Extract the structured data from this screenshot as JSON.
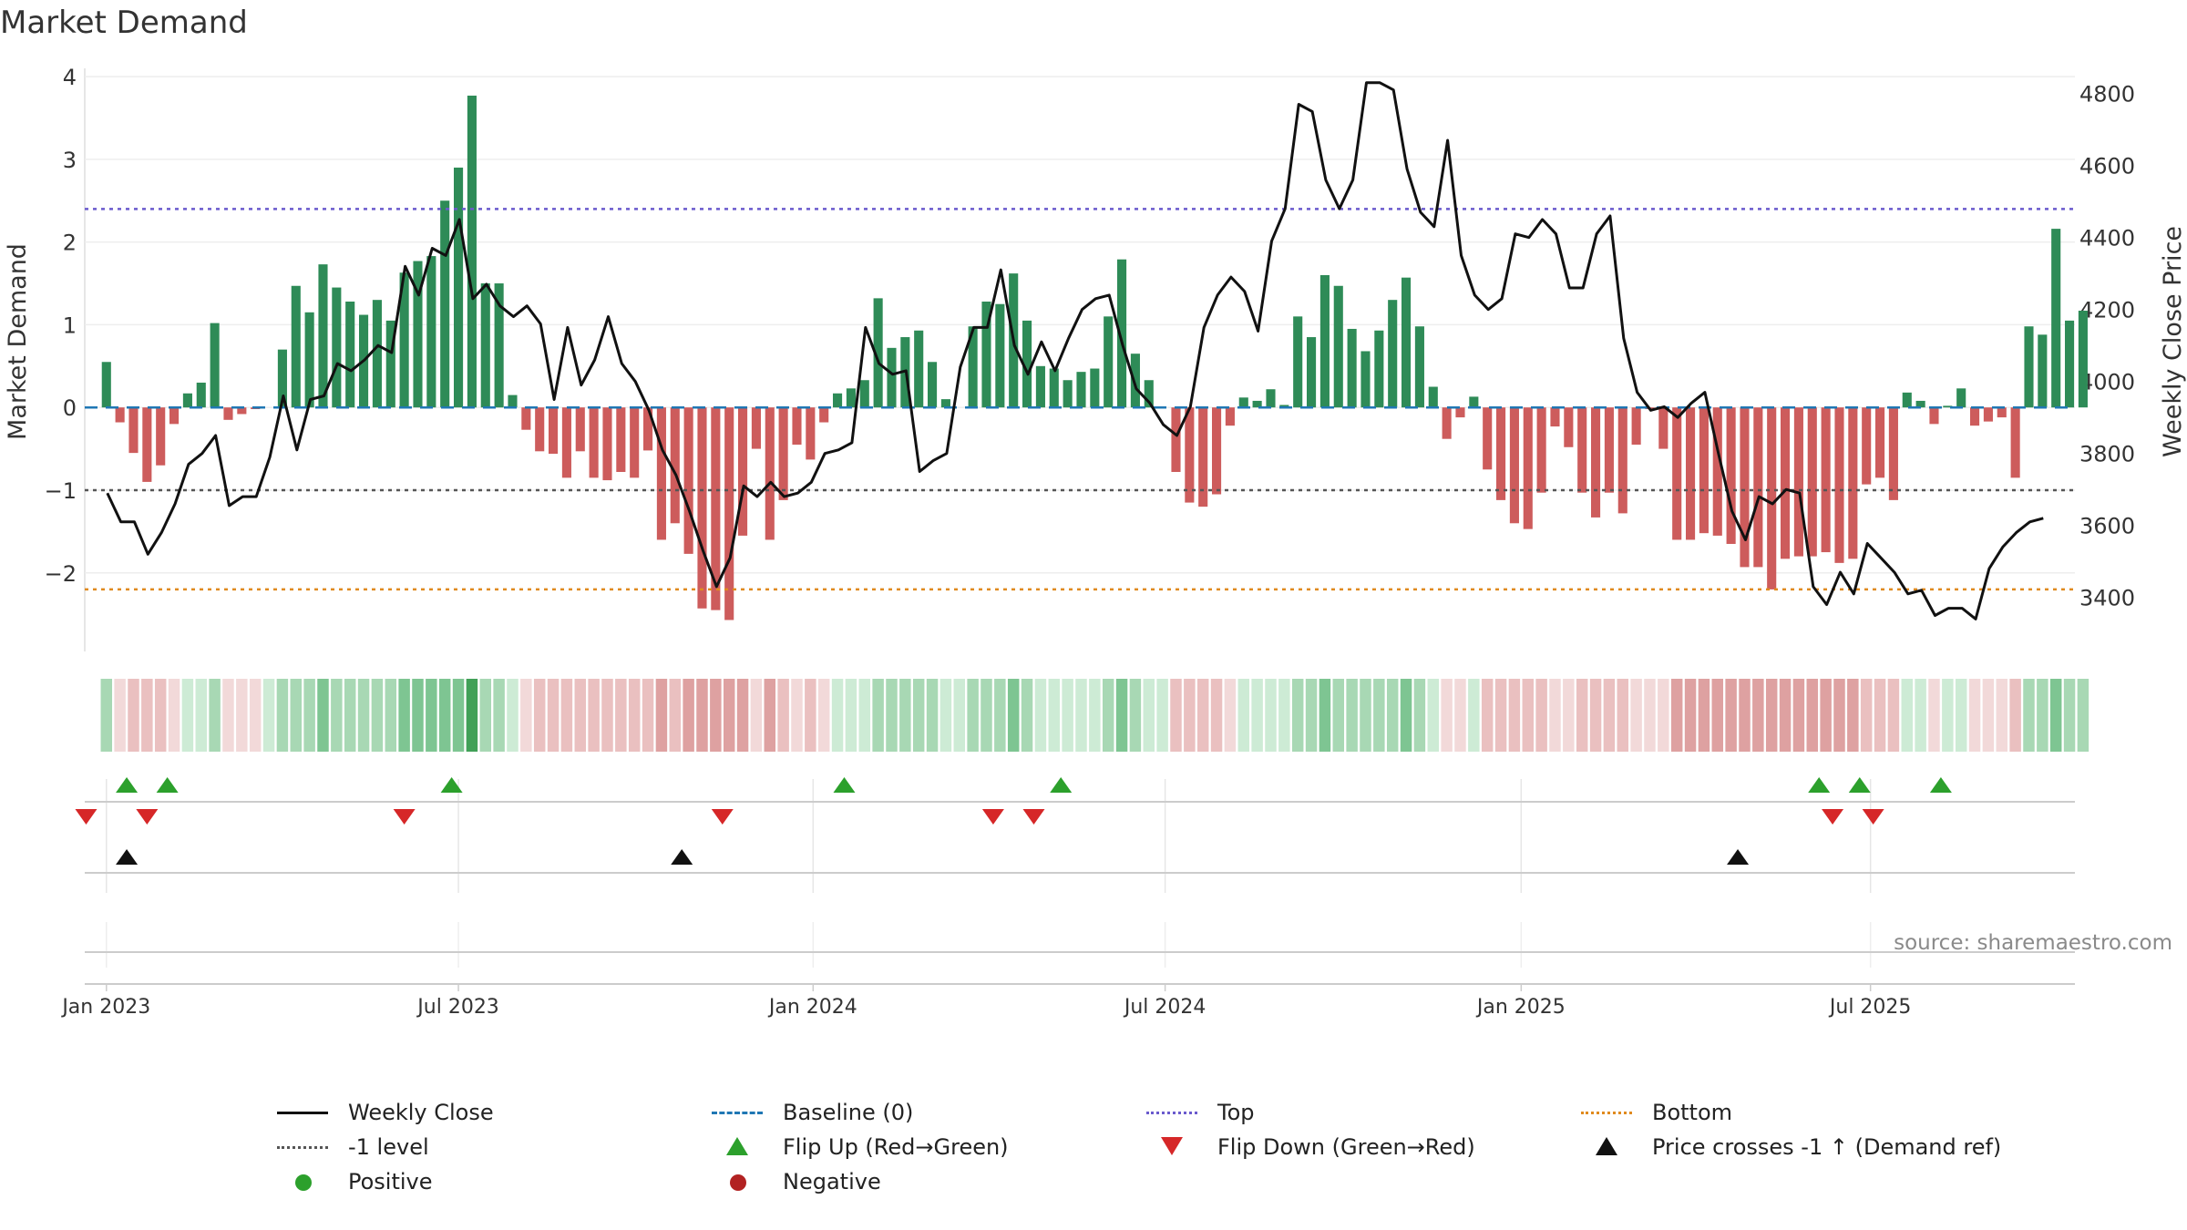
{
  "title": "Market Demand",
  "source": "source: sharemaestro.com",
  "colors": {
    "positive_bar": "#2e8b57",
    "negative_bar": "#cd5c5c",
    "price_line": "#111111",
    "baseline": "#1f77b4",
    "top": "#6a5acd",
    "neg1": "#555555",
    "bottom": "#e08a1e",
    "flip_up": "#2ca02c",
    "flip_down": "#d62728",
    "cross": "#111111",
    "positive_dot": "#2ca02c",
    "negative_dot": "#b22222"
  },
  "chart_data": {
    "type": "bar+line",
    "title": "Market Demand",
    "ylabel": "Market Demand",
    "y2label": "Weekly Close Price",
    "ylim": [
      -2.95,
      4.1
    ],
    "y2lim": [
      3250,
      4870
    ],
    "yticks": [
      4,
      3,
      2,
      1,
      0,
      -1,
      -2
    ],
    "ytick_labels": [
      "4",
      "3",
      "2",
      "1",
      "0",
      "−1",
      "−2"
    ],
    "y2ticks": [
      4800,
      4600,
      4400,
      4200,
      4000,
      3800,
      3600,
      3400
    ],
    "y2tick_labels": [
      "4800",
      "4600",
      "4400",
      "4200",
      "4000",
      "3800",
      "3600",
      "3400"
    ],
    "x_start_week_offset": -1.6,
    "xticks": [
      {
        "label": "Jan 2023",
        "week": 0
      },
      {
        "label": "Jul 2023",
        "week": 26
      },
      {
        "label": "Jan 2024",
        "week": 52.2
      },
      {
        "label": "Jul 2024",
        "week": 78.2
      },
      {
        "label": "Jan 2025",
        "week": 104.5
      },
      {
        "label": "Jul 2025",
        "week": 130.3
      }
    ],
    "reference_lines": {
      "top": 2.4,
      "neg1_level": -1,
      "bottom": -2.2,
      "baseline": 0
    },
    "demand": [
      0.55,
      -0.18,
      -0.55,
      -0.9,
      -0.7,
      -0.2,
      0.17,
      0.3,
      1.02,
      -0.15,
      -0.08,
      -0.02,
      0,
      0.7,
      1.47,
      1.15,
      1.73,
      1.45,
      1.28,
      1.12,
      1.3,
      1.05,
      1.63,
      1.77,
      1.83,
      2.5,
      2.9,
      3.77,
      1.5,
      1.5,
      0.15,
      -0.27,
      -0.53,
      -0.56,
      -0.85,
      -0.53,
      -0.85,
      -0.88,
      -0.78,
      -0.85,
      -0.52,
      -1.6,
      -1.4,
      -1.77,
      -2.43,
      -2.45,
      -2.57,
      -1.55,
      -0.5,
      -1.6,
      -1.12,
      -0.45,
      -0.63,
      -0.18,
      0.17,
      0.23,
      0.33,
      1.32,
      0.72,
      0.85,
      0.93,
      0.55,
      0.1,
      0,
      0.98,
      1.28,
      1.25,
      1.62,
      1.05,
      0.5,
      0.47,
      0.33,
      0.43,
      0.47,
      1.1,
      1.79,
      0.65,
      0.33,
      0,
      -0.78,
      -1.15,
      -1.2,
      -1.05,
      -0.22,
      0.12,
      0.08,
      0.22,
      0.03,
      1.1,
      0.85,
      1.6,
      1.47,
      0.95,
      0.68,
      0.93,
      1.3,
      1.57,
      0.98,
      0.25,
      -0.38,
      -0.12,
      0.13,
      -0.75,
      -1.12,
      -1.4,
      -1.47,
      -1.03,
      -0.23,
      -0.48,
      -1.03,
      -1.33,
      -1.03,
      -1.28,
      -0.45,
      -0.02,
      -0.5,
      -1.6,
      -1.6,
      -1.52,
      -1.55,
      -1.65,
      -1.93,
      -1.93,
      -2.2,
      -1.83,
      -1.8,
      -1.8,
      -1.75,
      -1.88,
      -1.83,
      -0.93,
      -0.85,
      -1.12,
      0.18,
      0.08,
      -0.2,
      0.02,
      0.23,
      -0.22,
      -0.17,
      -0.12,
      -0.85,
      0.98,
      0.88,
      2.16,
      1.05,
      1.17
    ],
    "price": [
      3690,
      3610,
      3610,
      3520,
      3580,
      3660,
      3770,
      3800,
      3850,
      3655,
      3680,
      3680,
      3790,
      3960,
      3810,
      3950,
      3960,
      4050,
      4030,
      4060,
      4100,
      4080,
      4320,
      4240,
      4370,
      4350,
      4450,
      4230,
      4270,
      4210,
      4180,
      4210,
      4160,
      3950,
      4150,
      3990,
      4060,
      4180,
      4050,
      4000,
      3920,
      3810,
      3740,
      3640,
      3530,
      3430,
      3510,
      3710,
      3680,
      3720,
      3680,
      3690,
      3720,
      3800,
      3810,
      3830,
      4150,
      4050,
      4020,
      4030,
      3750,
      3780,
      3800,
      4040,
      4150,
      4150,
      4310,
      4100,
      4020,
      4110,
      4030,
      4120,
      4200,
      4230,
      4240,
      4100,
      3980,
      3940,
      3880,
      3850,
      3930,
      4150,
      4240,
      4290,
      4250,
      4140,
      4390,
      4480,
      4770,
      4750,
      4560,
      4480,
      4560,
      4830,
      4830,
      4810,
      4590,
      4470,
      4430,
      4670,
      4350,
      4240,
      4200,
      4230,
      4410,
      4400,
      4450,
      4410,
      4260,
      4260,
      4410,
      4460,
      4120,
      3970,
      3920,
      3930,
      3900,
      3940,
      3970,
      3800,
      3640,
      3560,
      3680,
      3660,
      3700,
      3690,
      3430,
      3380,
      3470,
      3410,
      3550,
      3510,
      3470,
      3410,
      3420,
      3350,
      3370,
      3370,
      3340,
      3480,
      3540,
      3580,
      3610,
      3620
    ]
  },
  "strip": {
    "dark": [
      "#41a057",
      "#cc6d6d"
    ],
    "medium": [
      "#7ec592",
      "#dea1a1"
    ],
    "light": [
      "#a8d8b4",
      "#eac0c0"
    ],
    "pale": [
      "#cdebd5",
      "#f2d9d9"
    ]
  },
  "signals": {
    "flip_up_weeks": [
      1.5,
      4.5,
      25.5,
      54.5,
      70.5,
      126.5,
      129.5,
      135.5
    ],
    "flip_down_weeks": [
      -1.5,
      3,
      22,
      45.5,
      65.5,
      68.5,
      127.5,
      130.5
    ],
    "cross_weeks": [
      1.5,
      42.5,
      120.5
    ]
  },
  "legend": {
    "weekly_close": "Weekly Close",
    "baseline": "Baseline (0)",
    "top": "Top",
    "bottom": "Bottom",
    "neg1_level": "-1 level",
    "flip_up": "Flip Up (Red→Green)",
    "flip_down": "Flip Down (Green→Red)",
    "price_cross": "Price crosses -1 ↑ (Demand ref)",
    "positive": "Positive",
    "negative": "Negative"
  }
}
